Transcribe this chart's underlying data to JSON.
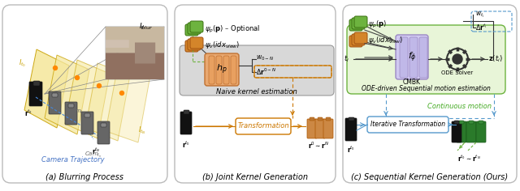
{
  "fig_width": 6.4,
  "fig_height": 2.36,
  "bg_color": "#ffffff",
  "green_color": "#6db33f",
  "orange_color": "#d4852a",
  "purple_color": "#9b89c4",
  "light_green_bg": "#e8f5d8",
  "light_gray_bg": "#d8d8d8",
  "blue_dashed": "#5599cc",
  "green_text": "#44aa22",
  "blue_text": "#4472c4",
  "panel_titles": [
    "(a) Blurring Process",
    "(b) Joint Kernel Generation",
    "(c) Sequential Kernel Generation (Ours)"
  ]
}
